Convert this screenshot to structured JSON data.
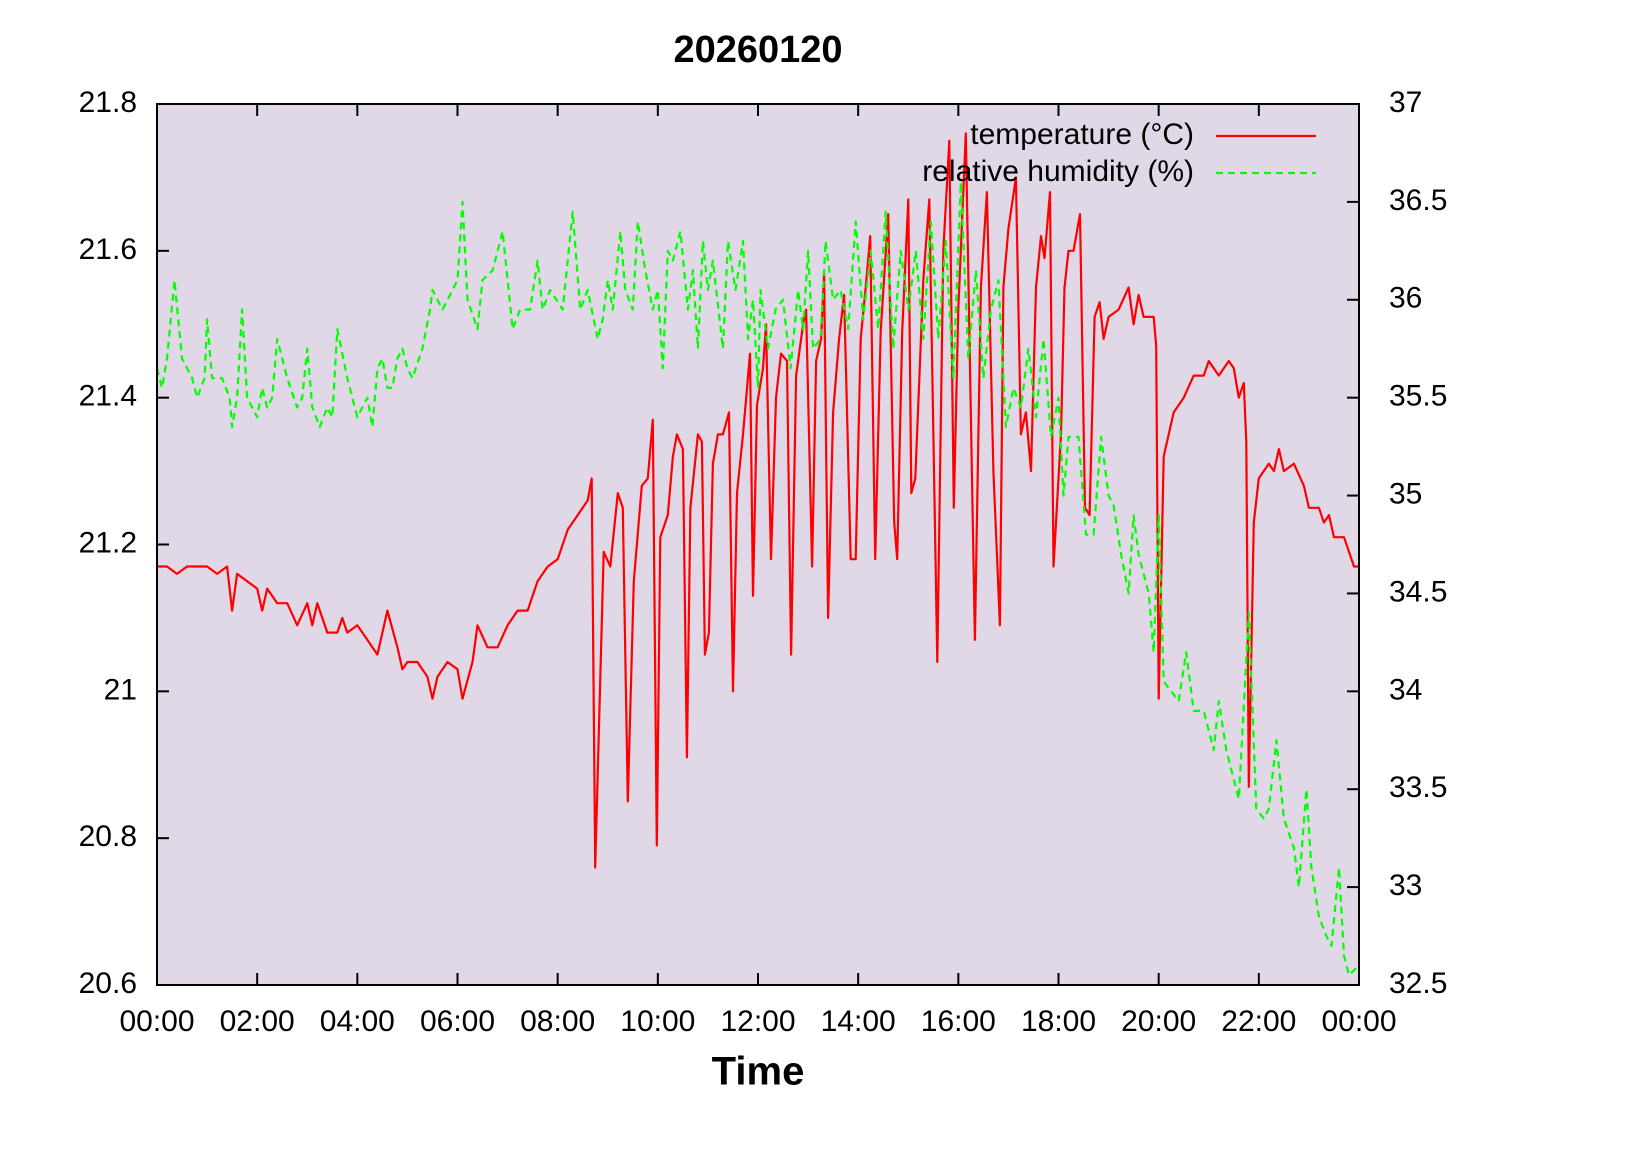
{
  "chart_data": {
    "type": "line",
    "title": "20260120",
    "x_label": "Time",
    "xlim": [
      0,
      24
    ],
    "xticks": [
      {
        "value": 0,
        "label": "00:00"
      },
      {
        "value": 2,
        "label": "02:00"
      },
      {
        "value": 4,
        "label": "04:00"
      },
      {
        "value": 6,
        "label": "06:00"
      },
      {
        "value": 8,
        "label": "08:00"
      },
      {
        "value": 10,
        "label": "10:00"
      },
      {
        "value": 12,
        "label": "12:00"
      },
      {
        "value": 14,
        "label": "14:00"
      },
      {
        "value": 16,
        "label": "16:00"
      },
      {
        "value": 18,
        "label": "18:00"
      },
      {
        "value": 20,
        "label": "20:00"
      },
      {
        "value": 22,
        "label": "22:00"
      },
      {
        "value": 24,
        "label": "00:00"
      }
    ],
    "ylim": [
      20.6,
      21.8
    ],
    "yticks": [
      20.6,
      20.8,
      21,
      21.2,
      21.4,
      21.6,
      21.8
    ],
    "y2lim": [
      32.5,
      37
    ],
    "y2ticks": [
      32.5,
      33,
      33.5,
      34,
      34.5,
      35,
      35.5,
      36,
      36.5,
      37
    ],
    "legend": "top-right",
    "background": "#e0d8e6",
    "series": [
      {
        "name": "temperature (°C)",
        "color": "#ff0000",
        "dash": "solid",
        "x": [
          0,
          0.2,
          0.4,
          0.6,
          0.8,
          1.0,
          1.2,
          1.4,
          1.5,
          1.6,
          1.8,
          2.0,
          2.1,
          2.2,
          2.4,
          2.6,
          2.8,
          3.0,
          3.1,
          3.2,
          3.4,
          3.6,
          3.7,
          3.8,
          4.0,
          4.2,
          4.4,
          4.6,
          4.8,
          4.9,
          5.0,
          5.2,
          5.4,
          5.5,
          5.6,
          5.8,
          6.0,
          6.1,
          6.3,
          6.4,
          6.6,
          6.8,
          7.0,
          7.2,
          7.4,
          7.6,
          7.8,
          8.0,
          8.2,
          8.4,
          8.6,
          8.68,
          8.75,
          8.92,
          9.05,
          9.2,
          9.3,
          9.4,
          9.52,
          9.68,
          9.8,
          9.9,
          9.98,
          10.05,
          10.2,
          10.3,
          10.38,
          10.5,
          10.58,
          10.65,
          10.8,
          10.88,
          10.94,
          11.02,
          11.1,
          11.2,
          11.3,
          11.42,
          11.5,
          11.58,
          11.7,
          11.84,
          11.9,
          11.98,
          12.1,
          12.16,
          12.26,
          12.36,
          12.46,
          12.58,
          12.66,
          12.76,
          12.9,
          12.96,
          13.08,
          13.16,
          13.26,
          13.32,
          13.4,
          13.5,
          13.62,
          13.72,
          13.85,
          13.95,
          14.05,
          14.15,
          14.24,
          14.34,
          14.45,
          14.6,
          14.72,
          14.78,
          14.88,
          15.0,
          15.06,
          15.14,
          15.3,
          15.42,
          15.58,
          15.7,
          15.82,
          15.91,
          16.0,
          16.15,
          16.33,
          16.45,
          16.57,
          16.7,
          16.83,
          16.9,
          17.0,
          17.15,
          17.25,
          17.35,
          17.45,
          17.55,
          17.65,
          17.72,
          17.83,
          17.9,
          18.05,
          18.12,
          18.2,
          18.3,
          18.43,
          18.53,
          18.62,
          18.72,
          18.82,
          18.9,
          19.0,
          19.2,
          19.4,
          19.5,
          19.6,
          19.7,
          19.9,
          19.95,
          20.0,
          20.1,
          20.3,
          20.5,
          20.7,
          20.9,
          21.0,
          21.2,
          21.4,
          21.5,
          21.6,
          21.7,
          21.75,
          21.8,
          21.9,
          22.0,
          22.2,
          22.3,
          22.4,
          22.5,
          22.7,
          22.9,
          23.0,
          23.2,
          23.3,
          23.4,
          23.5,
          23.7,
          23.8,
          23.9,
          24.0
        ],
        "values": [
          21.17,
          21.17,
          21.16,
          21.17,
          21.17,
          21.17,
          21.16,
          21.17,
          21.11,
          21.16,
          21.15,
          21.14,
          21.11,
          21.14,
          21.12,
          21.12,
          21.09,
          21.12,
          21.09,
          21.12,
          21.08,
          21.08,
          21.1,
          21.08,
          21.09,
          21.07,
          21.05,
          21.11,
          21.06,
          21.03,
          21.04,
          21.04,
          21.02,
          20.99,
          21.02,
          21.04,
          21.03,
          20.99,
          21.04,
          21.09,
          21.06,
          21.06,
          21.09,
          21.11,
          21.11,
          21.15,
          21.17,
          21.18,
          21.22,
          21.24,
          21.26,
          21.29,
          20.76,
          21.19,
          21.17,
          21.27,
          21.25,
          20.85,
          21.15,
          21.28,
          21.29,
          21.37,
          20.79,
          21.21,
          21.24,
          21.32,
          21.35,
          21.33,
          20.91,
          21.25,
          21.35,
          21.34,
          21.05,
          21.08,
          21.31,
          21.35,
          21.35,
          21.38,
          21.0,
          21.27,
          21.35,
          21.46,
          21.13,
          21.39,
          21.44,
          21.5,
          21.18,
          21.4,
          21.46,
          21.45,
          21.05,
          21.43,
          21.5,
          21.52,
          21.17,
          21.45,
          21.48,
          21.57,
          21.1,
          21.38,
          21.48,
          21.54,
          21.18,
          21.18,
          21.48,
          21.55,
          21.62,
          21.18,
          21.49,
          21.65,
          21.23,
          21.18,
          21.49,
          21.67,
          21.27,
          21.29,
          21.56,
          21.67,
          21.04,
          21.6,
          21.75,
          21.25,
          21.52,
          21.76,
          21.07,
          21.55,
          21.68,
          21.3,
          21.09,
          21.55,
          21.63,
          21.7,
          21.35,
          21.38,
          21.3,
          21.55,
          21.62,
          21.59,
          21.68,
          21.17,
          21.35,
          21.55,
          21.6,
          21.6,
          21.65,
          21.25,
          21.24,
          21.51,
          21.53,
          21.48,
          21.51,
          21.52,
          21.55,
          21.5,
          21.54,
          21.51,
          21.51,
          21.47,
          20.99,
          21.32,
          21.38,
          21.4,
          21.43,
          21.43,
          21.45,
          21.43,
          21.45,
          21.44,
          21.4,
          21.42,
          21.34,
          20.87,
          21.23,
          21.29,
          21.31,
          21.3,
          21.33,
          21.3,
          21.31,
          21.28,
          21.25,
          21.25,
          21.23,
          21.24,
          21.21,
          21.21,
          21.19,
          21.17,
          21.17
        ]
      },
      {
        "name": "relative humidity (%)",
        "color": "#00ff00",
        "dash": "dashed",
        "axis": "y2",
        "x": [
          0,
          0.1,
          0.2,
          0.35,
          0.5,
          0.7,
          0.8,
          0.95,
          1.0,
          1.1,
          1.3,
          1.45,
          1.5,
          1.6,
          1.7,
          1.8,
          2.0,
          2.1,
          2.2,
          2.3,
          2.4,
          2.6,
          2.8,
          2.9,
          3.0,
          3.1,
          3.25,
          3.4,
          3.5,
          3.6,
          3.8,
          4.0,
          4.2,
          4.3,
          4.4,
          4.5,
          4.6,
          4.7,
          4.8,
          4.9,
          5.0,
          5.1,
          5.3,
          5.45,
          5.5,
          5.7,
          5.8,
          5.9,
          6.0,
          6.1,
          6.2,
          6.4,
          6.5,
          6.7,
          6.9,
          7.1,
          7.25,
          7.45,
          7.6,
          7.7,
          7.85,
          8.1,
          8.3,
          8.45,
          8.6,
          8.8,
          8.9,
          9.0,
          9.1,
          9.25,
          9.35,
          9.5,
          9.6,
          9.75,
          9.9,
          10.0,
          10.1,
          10.2,
          10.3,
          10.45,
          10.6,
          10.7,
          10.8,
          10.9,
          11.0,
          11.1,
          11.3,
          11.4,
          11.55,
          11.7,
          11.8,
          11.9,
          12.0,
          12.05,
          12.2,
          12.35,
          12.5,
          12.65,
          12.8,
          12.9,
          13.0,
          13.1,
          13.25,
          13.35,
          13.5,
          13.65,
          13.8,
          13.95,
          14.1,
          14.25,
          14.4,
          14.55,
          14.7,
          14.85,
          15.0,
          15.15,
          15.3,
          15.45,
          15.6,
          15.75,
          15.9,
          16.05,
          16.2,
          16.35,
          16.5,
          16.65,
          16.8,
          16.95,
          17.1,
          17.25,
          17.4,
          17.55,
          17.7,
          17.85,
          18.0,
          18.1,
          18.2,
          18.4,
          18.55,
          18.7,
          18.85,
          19.0,
          19.1,
          19.25,
          19.4,
          19.5,
          19.6,
          19.8,
          19.9,
          20.0,
          20.1,
          20.25,
          20.4,
          20.55,
          20.7,
          20.9,
          21.1,
          21.2,
          21.35,
          21.6,
          21.8,
          21.95,
          22.1,
          22.2,
          22.35,
          22.5,
          22.7,
          22.8,
          22.95,
          23.05,
          23.2,
          23.35,
          23.45,
          23.6,
          23.7,
          23.8,
          24.0
        ],
        "values": [
          35.65,
          35.55,
          35.7,
          36.1,
          35.7,
          35.6,
          35.5,
          35.6,
          35.9,
          35.6,
          35.6,
          35.5,
          35.35,
          35.5,
          35.95,
          35.5,
          35.4,
          35.55,
          35.45,
          35.5,
          35.8,
          35.6,
          35.45,
          35.5,
          35.75,
          35.45,
          35.35,
          35.45,
          35.4,
          35.85,
          35.6,
          35.4,
          35.5,
          35.35,
          35.65,
          35.7,
          35.55,
          35.55,
          35.7,
          35.75,
          35.65,
          35.6,
          35.75,
          35.95,
          36.05,
          35.95,
          36.0,
          36.05,
          36.1,
          36.5,
          36.0,
          35.85,
          36.1,
          36.15,
          36.35,
          35.85,
          35.95,
          35.95,
          36.2,
          35.95,
          36.05,
          35.95,
          36.45,
          35.95,
          36.05,
          35.8,
          35.9,
          36.1,
          35.95,
          36.35,
          36.05,
          35.95,
          36.4,
          36.15,
          35.95,
          36.05,
          35.65,
          36.25,
          36.2,
          36.35,
          35.95,
          36.15,
          35.75,
          36.3,
          36.05,
          36.2,
          35.75,
          36.3,
          36.05,
          36.3,
          35.8,
          36.0,
          35.55,
          36.05,
          35.75,
          35.95,
          36.0,
          35.65,
          36.05,
          35.85,
          36.25,
          35.75,
          35.8,
          36.3,
          36.0,
          36.05,
          35.85,
          36.4,
          35.9,
          36.25,
          35.85,
          36.45,
          35.75,
          36.25,
          35.95,
          36.25,
          35.8,
          36.4,
          35.8,
          36.3,
          35.6,
          36.6,
          35.7,
          36.15,
          35.6,
          35.95,
          36.1,
          35.35,
          35.55,
          35.45,
          35.75,
          35.4,
          35.8,
          35.3,
          35.5,
          35.0,
          35.3,
          35.3,
          34.8,
          34.8,
          35.3,
          35.0,
          34.95,
          34.7,
          34.5,
          34.9,
          34.7,
          34.5,
          34.2,
          34.9,
          34.05,
          34.0,
          33.95,
          34.2,
          33.9,
          33.9,
          33.7,
          33.95,
          33.7,
          33.45,
          34.4,
          33.4,
          33.35,
          33.4,
          33.75,
          33.35,
          33.2,
          33.0,
          33.5,
          33.1,
          32.85,
          32.75,
          32.7,
          33.1,
          32.65,
          32.55,
          32.6
        ]
      }
    ]
  }
}
